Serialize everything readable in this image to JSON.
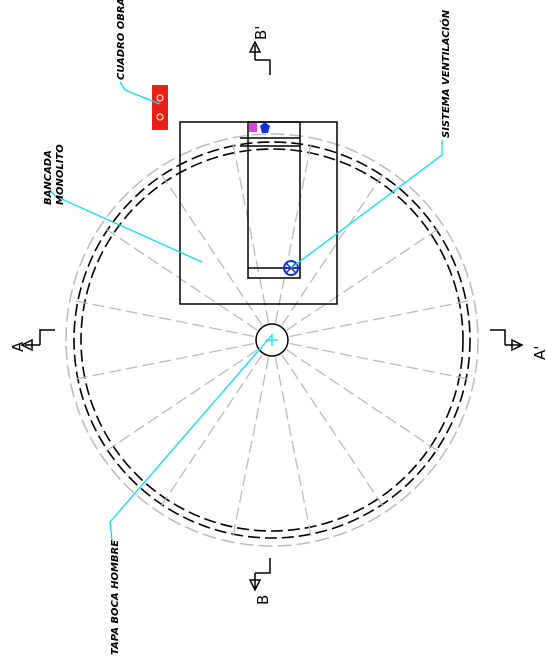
{
  "labels": {
    "cuadro_obra": "CUADRO OBRA",
    "sistema_ventilacion": "SISTEMA VENTILACIÓN",
    "bancada": "BANCADA",
    "monolito": "MONOLITO",
    "tapa_boca_hombre": "TAPA BOCA HOMBRE"
  },
  "sections": {
    "a": "A",
    "a_prime": "A'",
    "b": "B",
    "b_prime": "B'"
  }
}
